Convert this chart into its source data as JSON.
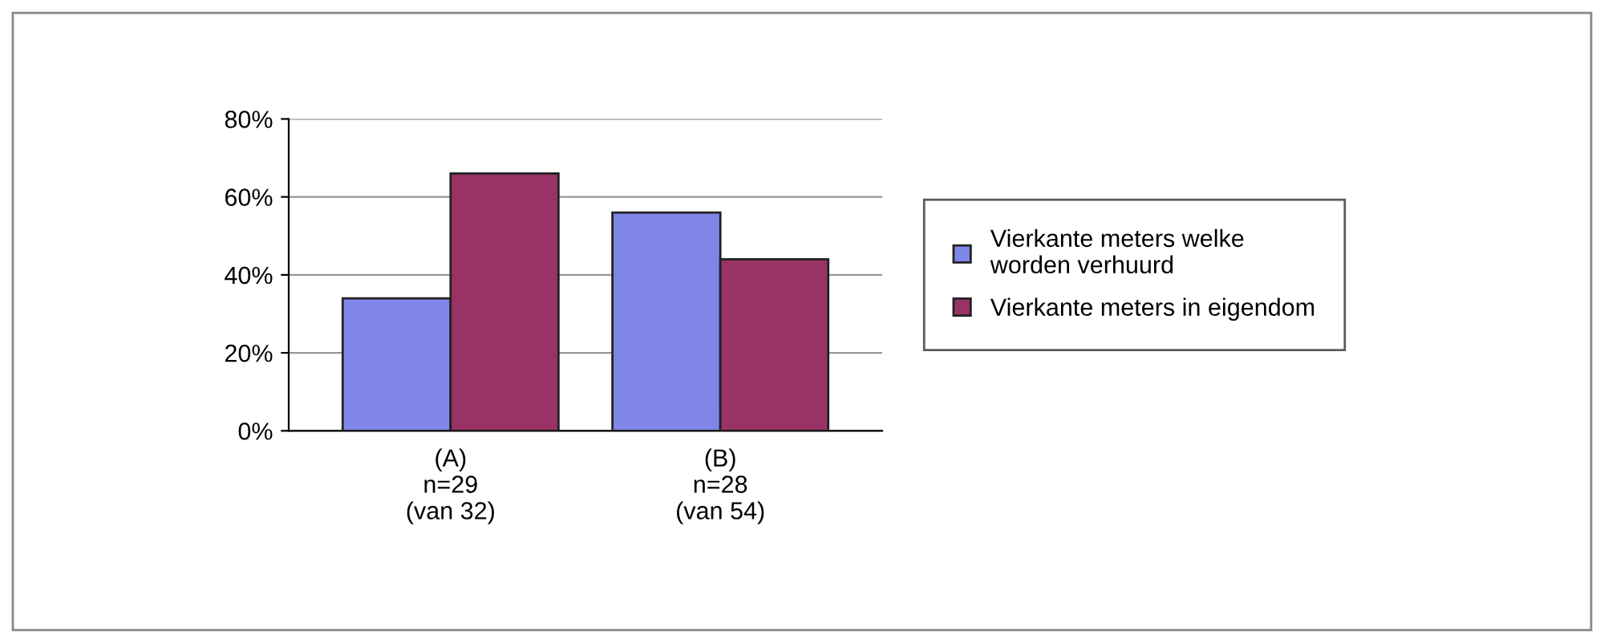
{
  "chart_data": {
    "type": "bar",
    "categories": [
      "(A)\nn=29\n(van 32)",
      "(B)\nn=28\n(van 54)"
    ],
    "series": [
      {
        "name": "Vierkante meters welke\nworden verhuurd",
        "color": "#7f86e8",
        "values": [
          34,
          56
        ]
      },
      {
        "name": "Vierkante meters in eigendom",
        "color": "#993366",
        "values": [
          66,
          44
        ]
      }
    ],
    "ylim": [
      0,
      80
    ],
    "yticks": [
      {
        "value": 0,
        "label": "0%"
      },
      {
        "value": 20,
        "label": "20%"
      },
      {
        "value": 40,
        "label": "40%"
      },
      {
        "value": 60,
        "label": "60%"
      },
      {
        "value": 80,
        "label": "80%"
      }
    ],
    "grid": "y",
    "legend": "right"
  }
}
